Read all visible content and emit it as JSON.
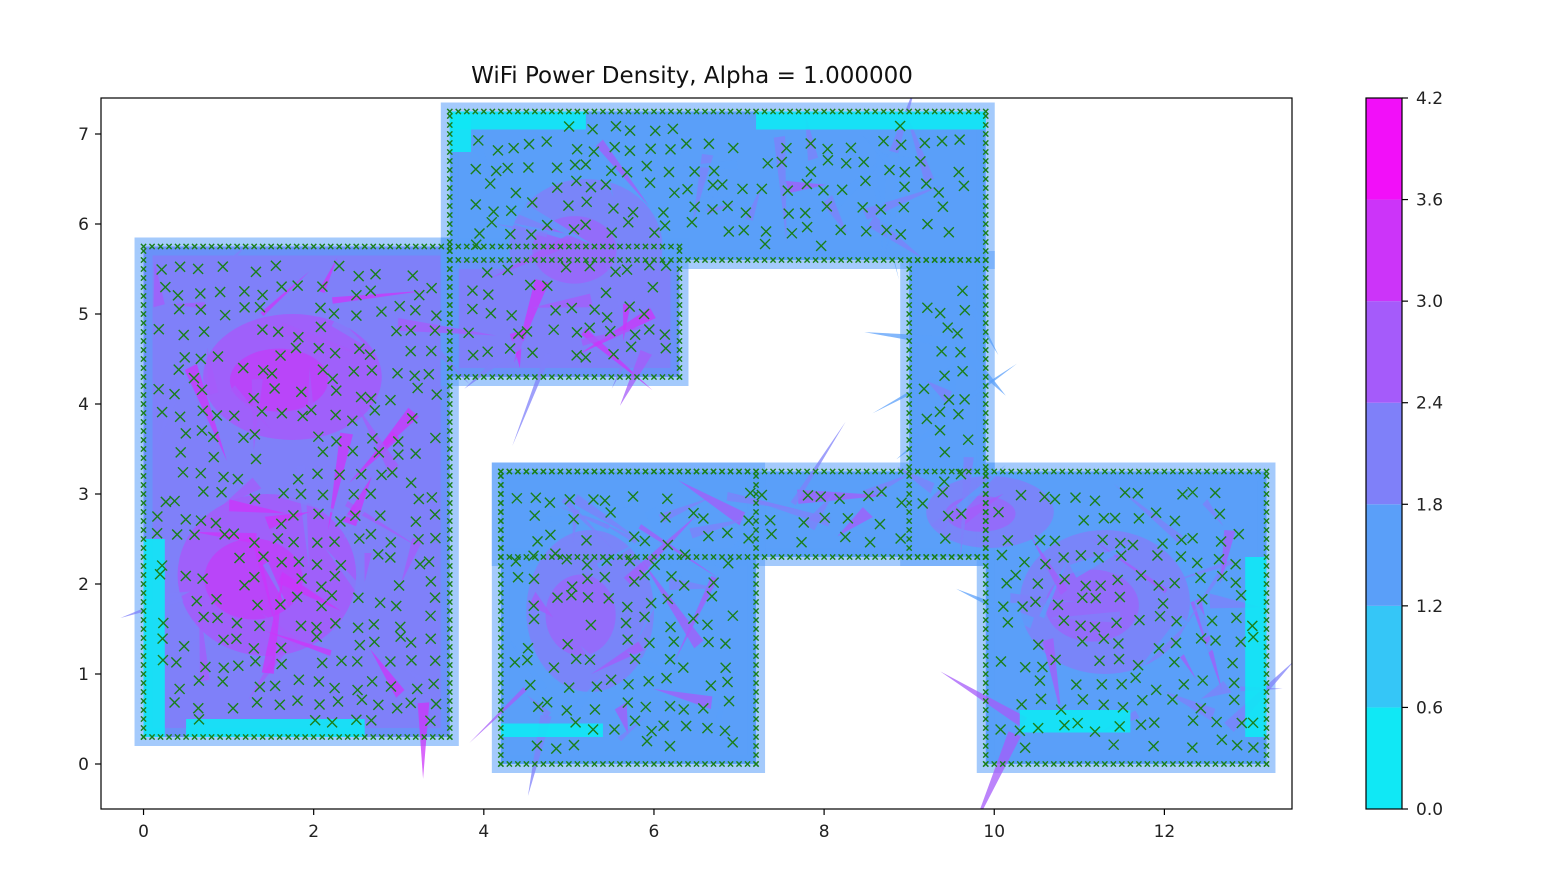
{
  "chart_data": {
    "type": "heatmap",
    "title": "WiFi Power Density, Alpha = 1.000000",
    "xlabel": "",
    "ylabel": "",
    "xlim": [
      -0.5,
      13.5
    ],
    "ylim": [
      -0.5,
      7.4
    ],
    "xticks": [
      0,
      2,
      4,
      6,
      8,
      10,
      12
    ],
    "yticks": [
      0,
      1,
      2,
      3,
      4,
      5,
      6,
      7
    ],
    "grid": false,
    "colorbar": {
      "ticks": [
        0.0,
        0.6,
        1.2,
        1.8,
        2.4,
        3.0,
        3.6,
        4.2
      ],
      "tick_labels": [
        "0.0",
        "0.6",
        "1.2",
        "1.8",
        "2.4",
        "3.0",
        "3.6",
        "4.2"
      ],
      "levels": [
        {
          "range": [
            0.0,
            0.6
          ],
          "color": "#10e8f5"
        },
        {
          "range": [
            0.6,
            1.2
          ],
          "color": "#35c6f7"
        },
        {
          "range": [
            1.2,
            1.8
          ],
          "color": "#5a9ff9"
        },
        {
          "range": [
            1.8,
            2.4
          ],
          "color": "#7f80f9"
        },
        {
          "range": [
            2.4,
            3.0
          ],
          "color": "#a55bfa"
        },
        {
          "range": [
            3.0,
            3.6
          ],
          "color": "#cc34f9"
        },
        {
          "range": [
            3.6,
            4.2
          ],
          "color": "#f20ff9"
        }
      ]
    },
    "regions": [
      {
        "name": "left-room",
        "x": [
          0.0,
          3.6
        ],
        "y": [
          0.3,
          5.75
        ],
        "level": 4
      },
      {
        "name": "upper-corridor",
        "x": [
          3.6,
          6.3
        ],
        "y": [
          4.3,
          5.75
        ],
        "level": 4
      },
      {
        "name": "top-room",
        "x": [
          3.6,
          9.9
        ],
        "y": [
          5.6,
          7.25
        ],
        "level": 3
      },
      {
        "name": "vertical-corridor",
        "x": [
          9.0,
          9.9
        ],
        "y": [
          2.3,
          5.6
        ],
        "level": 3
      },
      {
        "name": "middle-corridor",
        "x": [
          4.2,
          9.9
        ],
        "y": [
          2.3,
          3.25
        ],
        "level": 3
      },
      {
        "name": "middle-room",
        "x": [
          4.2,
          7.2
        ],
        "y": [
          0.0,
          3.25
        ],
        "level": 3
      },
      {
        "name": "right-room",
        "x": [
          9.9,
          13.2
        ],
        "y": [
          0.0,
          3.25
        ],
        "level": 3
      }
    ],
    "hot_zones": [
      {
        "x": [
          0.7,
          2.8
        ],
        "y": [
          3.6,
          5.0
        ],
        "level": 5
      },
      {
        "x": [
          0.4,
          2.5
        ],
        "y": [
          1.2,
          3.0
        ],
        "level": 5
      },
      {
        "x": [
          4.3,
          6.1
        ],
        "y": [
          5.0,
          6.5
        ],
        "level": 4
      },
      {
        "x": [
          4.5,
          6.0
        ],
        "y": [
          0.8,
          2.6
        ],
        "level": 4
      },
      {
        "x": [
          10.3,
          12.3
        ],
        "y": [
          1.0,
          2.6
        ],
        "level": 4
      },
      {
        "x": [
          9.2,
          10.7
        ],
        "y": [
          2.4,
          3.2
        ],
        "level": 4
      }
    ],
    "series": [
      {
        "name": "",
        "marker": "x",
        "color": "#1a7f1a"
      }
    ]
  }
}
